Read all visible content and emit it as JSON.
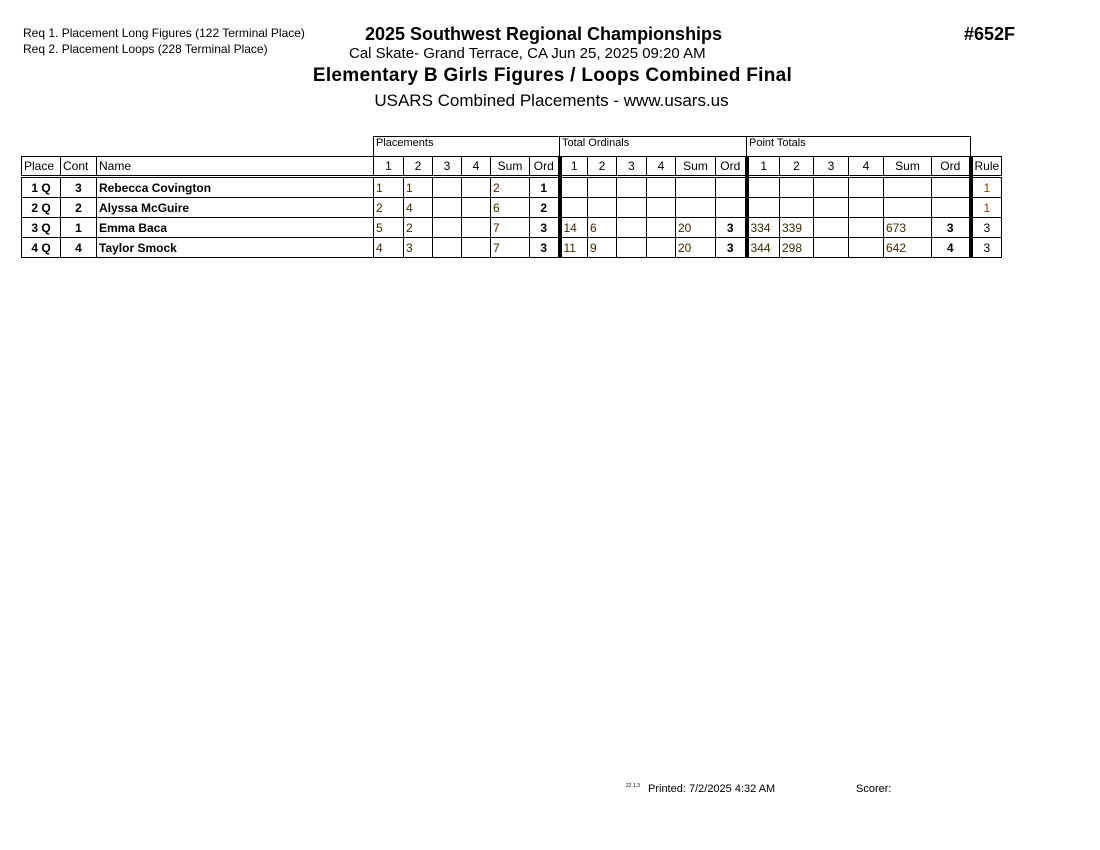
{
  "header": {
    "requirements": [
      "Req  1.  Placement Long Figures (122 Terminal Place)",
      "Req  2.  Placement Loops (228 Terminal Place)"
    ],
    "title": "2025 Southwest Regional Championships",
    "subtitle": "Cal Skate- Grand Terrace, CA  Jun 25, 2025  09:20 AM",
    "event": "Elementary B Girls Figures / Loops Combined Final",
    "website": "USARS Combined Placements - www.usars.us",
    "event_number": "#652F"
  },
  "table": {
    "groups": [
      "Placements",
      "Total Ordinals",
      "Point Totals"
    ],
    "columns": [
      "Place",
      "Cont",
      "Name",
      "1",
      "2",
      "3",
      "4",
      "Sum",
      "Ord",
      "1",
      "2",
      "3",
      "4",
      "Sum",
      "Ord",
      "1",
      "2",
      "3",
      "4",
      "Sum",
      "Ord",
      "Rule"
    ],
    "rows": [
      [
        "1 Q",
        "3",
        "Rebecca Covington",
        "1",
        "1",
        "",
        "",
        "2",
        "1",
        "",
        "",
        "",
        "",
        "",
        "",
        "",
        "",
        "",
        "",
        "",
        "",
        "1"
      ],
      [
        "2 Q",
        "2",
        "Alyssa McGuire",
        "2",
        "4",
        "",
        "",
        "6",
        "2",
        "",
        "",
        "",
        "",
        "",
        "",
        "",
        "",
        "",
        "",
        "",
        "",
        "1"
      ],
      [
        "3 Q",
        "1",
        "Emma Baca",
        "5",
        "2",
        "",
        "",
        "7",
        "3",
        "14",
        "6",
        "",
        "",
        "20",
        "3",
        "334",
        "339",
        "",
        "",
        "673",
        "3",
        "3"
      ],
      [
        "4 Q",
        "4",
        "Taylor Smock",
        "4",
        "3",
        "",
        "",
        "7",
        "3",
        "11",
        "9",
        "",
        "",
        "20",
        "3",
        "344",
        "298",
        "",
        "",
        "642",
        "4",
        "3"
      ]
    ]
  },
  "footer": {
    "version": "22.1.3",
    "printed": "Printed:  7/2/2025  4:32 AM",
    "scorer": "Scorer:"
  }
}
